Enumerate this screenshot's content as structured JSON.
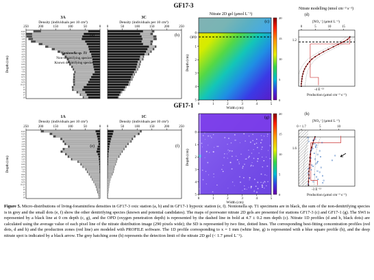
{
  "figure": {
    "title_top": "GF17-3",
    "title_bottom": "GF17-1",
    "colors": {
      "nonionella": "#1a1a1a",
      "non_denitrifying": "#b5b5b5",
      "known_denitrifying": "#4d4d4d",
      "swi_line": "#000000",
      "opd_line": "#000000",
      "profile_dots": "#000000",
      "profile_dots_blue": "#1f5fb4",
      "fit_line": "#8b0000",
      "production_line": "#cc3333"
    },
    "panels": {
      "a": {
        "label": "(a)",
        "station_title": "3A",
        "axis_title": "Density (individuals per 10 cm³)",
        "ticks": [
          "250",
          "200",
          "150",
          "100",
          "50",
          "0"
        ],
        "ylabel": "Depth (cm)"
      },
      "b": {
        "label": "(b)",
        "station_title": "3C",
        "axis_title": "Density (individuals per 10 cm³)",
        "ticks": [
          "0",
          "50",
          "100",
          "150",
          "200",
          "250"
        ]
      },
      "c": {
        "label": "(c)",
        "title": "Nitrate 2D gel (μmol L⁻¹)",
        "xlabel": "Width (cm)",
        "ylabel": "Depth (cm)",
        "x_ticks": [
          "0",
          "1",
          "2",
          "3",
          "4",
          "5"
        ],
        "y_ticks": [
          "0",
          "1",
          "2",
          "3",
          "4",
          "5"
        ],
        "opd_label": "OPD",
        "colorbar_ticks": [
          "20",
          "15",
          "10",
          "5",
          "0"
        ]
      },
      "d": {
        "label": "(d)",
        "title": "Nitrate modelling (nmol cm⁻³ s⁻¹)",
        "top_axis_title": "[NO₃⁻] (μmol L⁻¹)",
        "top_ticks": [
          "0",
          "5",
          "10",
          "15"
        ],
        "bottom_axis_title": "Production (μmol cm⁻³ s⁻¹)",
        "bottom_tick": "-4 E⁻¹³",
        "depth_tick": "1.2"
      },
      "e": {
        "label": "(e)",
        "station_title": "1A",
        "axis_title": "Density (individuals per 10 cm³)",
        "ticks": [
          "250",
          "200",
          "150",
          "100",
          "50",
          "0"
        ],
        "ylabel": "Depth (cm)"
      },
      "f": {
        "label": "(f)",
        "station_title": "1C",
        "axis_title": "Density (individuals per 10 cm³)",
        "ticks": [
          "0",
          "50",
          "100",
          "150",
          "200",
          "250"
        ]
      },
      "g": {
        "label": "(g)",
        "xlabel": "Width (cm)",
        "ylabel": "Depth (cm)",
        "x_ticks": [
          "0",
          "1",
          "2",
          "3",
          "4",
          "5"
        ],
        "y_ticks": [
          "0",
          "1",
          "2",
          "3",
          "4",
          "5"
        ],
        "colorbar_ticks": [
          "20",
          "15",
          "10",
          "5",
          "0"
        ]
      },
      "h": {
        "label": "(h)",
        "top_axis_title": "[NO₃⁻] (μmol L⁻¹)",
        "top_ticks": [
          "0 < 1.7",
          "5",
          "10"
        ],
        "bottom_axis_title": "Production (μmol cm⁻³ s⁻¹)",
        "bottom_tick": "-3 E⁻¹³",
        "depth_tick": "1.6"
      }
    },
    "legend": {
      "nonionella": "Nonionella sp. T1",
      "non_denitrifying": "Non-denitrifying species",
      "known_denitrifying": "Known denitrifying species"
    }
  },
  "chart_data": [
    {
      "type": "bar",
      "panel": "a",
      "orientation": "horizontal",
      "xlabel": "Density (individuals per 10 cm³)",
      "ylabel": "Depth (cm)",
      "xlim": [
        0,
        250
      ],
      "depth_labels": [
        "-0.25",
        "0.25",
        "0.75",
        "1.25",
        "1.75",
        "2.25",
        "2.75",
        "3.25",
        "3.75",
        "4.25",
        "4.75",
        "5.25",
        "5.75",
        "6.25",
        "6.75",
        "7.25",
        "7.75",
        "8.25",
        "8.75",
        "9.25",
        "9.75",
        "10.25",
        "11",
        "13",
        "15",
        "17",
        "19"
      ],
      "series": [
        {
          "name": "Nonionella sp. T1",
          "values": [
            40,
            55,
            60,
            62,
            50,
            45,
            40,
            38,
            35,
            30,
            28,
            26,
            25,
            24,
            22,
            20,
            18,
            25,
            30,
            35,
            40,
            45,
            55,
            60,
            50,
            45,
            40
          ]
        },
        {
          "name": "Non-denitrifying species",
          "values": [
            160,
            175,
            170,
            165,
            168,
            150,
            135,
            115,
            100,
            90,
            85,
            80,
            78,
            75,
            70,
            68,
            65,
            60,
            55,
            50,
            45,
            40,
            35,
            30,
            25,
            20,
            15
          ]
        },
        {
          "name": "Known denitrifying species",
          "values": [
            25,
            20,
            18,
            15,
            15,
            12,
            10,
            10,
            8,
            8,
            6,
            6,
            5,
            5,
            5,
            4,
            4,
            5,
            5,
            6,
            6,
            5,
            5,
            4,
            4,
            3,
            3
          ]
        }
      ]
    },
    {
      "type": "bar",
      "panel": "b",
      "orientation": "horizontal",
      "xlabel": "Density (individuals per 10 cm³)",
      "xlim": [
        0,
        250
      ],
      "depth_labels": [
        "-0.25",
        "0.25",
        "0.75",
        "1.25",
        "1.75",
        "2.25",
        "2.75",
        "3.25",
        "3.75",
        "4.25",
        "4.75",
        "5.25",
        "5.75",
        "6.25",
        "6.75",
        "7.25",
        "7.75",
        "8.25",
        "8.75",
        "9.25",
        "9.75",
        "10.25",
        "11",
        "13",
        "15",
        "17",
        "19"
      ],
      "series": [
        {
          "name": "Nonionella sp. T1",
          "values": [
            120,
            110,
            115,
            118,
            115,
            120,
            140,
            135,
            130,
            125,
            110,
            108,
            102,
            100,
            98,
            95,
            90,
            85,
            80,
            78,
            72,
            70,
            60,
            55,
            45,
            40,
            35
          ]
        },
        {
          "name": "Non-denitrifying species",
          "values": [
            30,
            35,
            40,
            38,
            30,
            25,
            20,
            18,
            15,
            12,
            10,
            10,
            8,
            8,
            8,
            6,
            6,
            5,
            5,
            4,
            4,
            4,
            3,
            3,
            3,
            2,
            2
          ]
        },
        {
          "name": "Known denitrifying species",
          "values": [
            8,
            8,
            10,
            10,
            8,
            6,
            5,
            5,
            4,
            4,
            3,
            3,
            3,
            3,
            2,
            2,
            2,
            2,
            2,
            2,
            1,
            1,
            1,
            1,
            1,
            1,
            1
          ]
        }
      ]
    },
    {
      "type": "bar",
      "panel": "e",
      "orientation": "horizontal",
      "xlabel": "Density (individuals per 10 cm³)",
      "ylabel": "Depth (cm)",
      "xlim": [
        0,
        250
      ],
      "depth_labels": [
        "-0.25",
        "0.25",
        "0.75",
        "1.25",
        "1.75",
        "2.25",
        "2.75",
        "3.25",
        "3.75",
        "4.25",
        "4.75",
        "5.25",
        "5.75",
        "6.25",
        "6.75",
        "7.25",
        "7.75",
        "8.25",
        "8.75",
        "9.25",
        "9.75",
        "10.25",
        "11",
        "13",
        "15",
        "17",
        "19"
      ],
      "series": [
        {
          "name": "Nonionella sp. T1",
          "values": [
            15,
            12,
            10,
            8,
            6,
            5,
            8,
            10,
            12,
            8,
            5,
            4,
            3,
            3,
            2,
            2,
            2,
            1,
            1,
            1,
            1,
            1,
            1,
            0,
            0,
            0,
            0
          ]
        },
        {
          "name": "Non-denitrifying species",
          "values": [
            175,
            150,
            140,
            120,
            115,
            110,
            95,
            110,
            115,
            105,
            100,
            90,
            70,
            60,
            55,
            45,
            40,
            35,
            30,
            25,
            20,
            15,
            12,
            10,
            8,
            6,
            5
          ]
        },
        {
          "name": "Known denitrifying species",
          "values": [
            10,
            8,
            8,
            6,
            5,
            5,
            5,
            6,
            6,
            5,
            4,
            4,
            3,
            3,
            2,
            2,
            2,
            2,
            1,
            1,
            1,
            1,
            1,
            1,
            1,
            0,
            0
          ]
        }
      ]
    },
    {
      "type": "bar",
      "panel": "f",
      "orientation": "horizontal",
      "xlabel": "Density (individuals per 10 cm³)",
      "xlim": [
        0,
        250
      ],
      "depth_labels": [
        "-0.25",
        "0.25",
        "0.75",
        "1.25",
        "1.75",
        "2.25",
        "2.75",
        "3.25",
        "3.75",
        "4.25",
        "4.75",
        "5.25",
        "5.75",
        "6.25",
        "6.75",
        "7.25",
        "7.75",
        "8.25",
        "8.75",
        "9.25",
        "9.75",
        "10.25",
        "11",
        "13",
        "15",
        "17",
        "19"
      ],
      "series": [
        {
          "name": "Nonionella sp. T1",
          "values": [
            20,
            18,
            15,
            12,
            10,
            8,
            6,
            5,
            4,
            3,
            3,
            2,
            2,
            2,
            1,
            1,
            1,
            1,
            1,
            0,
            0,
            0,
            0,
            0,
            0,
            0,
            0
          ]
        },
        {
          "name": "Non-denitrifying species",
          "values": [
            90,
            85,
            75,
            70,
            68,
            60,
            55,
            50,
            45,
            40,
            35,
            30,
            28,
            25,
            22,
            20,
            18,
            15,
            12,
            10,
            8,
            6,
            5,
            4,
            3,
            2,
            2
          ]
        },
        {
          "name": "Known denitrifying species",
          "values": [
            5,
            5,
            4,
            4,
            3,
            3,
            3,
            2,
            2,
            2,
            2,
            1,
            1,
            1,
            1,
            1,
            1,
            1,
            0,
            0,
            0,
            0,
            0,
            0,
            0,
            0,
            0
          ]
        }
      ]
    },
    {
      "type": "line",
      "panel": "d",
      "xlabel": "[NO₃⁻] (μmol L⁻¹)",
      "xlim": [
        0,
        17
      ],
      "ylim_depth_cm": [
        0.2,
        -5.0
      ],
      "swi_depth_cm": 0,
      "opd_depth_cm": -0.5,
      "series": [
        {
          "name": "profile",
          "x": [
            15.5,
            14.8,
            13.5,
            12,
            10.5,
            9,
            7.5,
            6.2,
            5,
            4,
            3.3,
            2.7,
            2.2,
            1.8,
            1.5,
            1.3,
            1.1,
            1,
            0.9,
            0.8,
            0.8
          ],
          "depth": [
            0,
            -0.25,
            -0.5,
            -0.75,
            -1,
            -1.25,
            -1.5,
            -1.75,
            -2,
            -2.25,
            -2.5,
            -2.75,
            -3,
            -3.25,
            -3.5,
            -3.75,
            -4,
            -4.25,
            -4.5,
            -4.75,
            -5
          ]
        },
        {
          "name": "production",
          "x": [
            15.5,
            15.5,
            3.5,
            3.5,
            6,
            6
          ],
          "depth": [
            0.1,
            -0.7,
            -0.7,
            -4.1,
            -4.1,
            -4.9
          ]
        }
      ]
    },
    {
      "type": "line",
      "panel": "h",
      "xlabel": "[NO₃⁻] (μmol L⁻¹)",
      "xlim": [
        0,
        12
      ],
      "ylim_depth_cm": [
        0.2,
        -5.0
      ],
      "swi_depth_cm": 0,
      "series": [
        {
          "name": "profile",
          "x": [
            3.5,
            3.2,
            3,
            2.8,
            2.6,
            2.5,
            2.4,
            2.4,
            2.3,
            2.3,
            2.2,
            2.2,
            2.2,
            2.1,
            2.1
          ],
          "depth": [
            0,
            -0.35,
            -0.7,
            -1.05,
            -1.4,
            -1.75,
            -2.1,
            -2.45,
            -2.8,
            -3.15,
            -3.5,
            -3.85,
            -4.2,
            -4.55,
            -4.9
          ]
        },
        {
          "name": "production",
          "x": [
            9,
            9,
            2.6,
            2.6,
            4,
            4
          ],
          "depth": [
            0.1,
            -0.6,
            -0.6,
            -4.4,
            -4.4,
            -4.9
          ]
        }
      ]
    }
  ],
  "caption": {
    "label": "Figure 5.",
    "text": " Micro-distributions of living-foraminifera densities in GF17-3 oxic station (a, b) and in GF17-1 hypoxic station (e, f). Nonionella sp. T1 specimens are in black, the sum of the non-denitrifying species is in grey and the small dots (e, f) show the other denitrifying species (known and potential candidates). The maps of porewater nitrate 2D gels are presented for stations GF17-3 (c) and GF17-1 (g). The SWI is represented by a black line at 0 cm depth (c, g), and the OPD (oxygen penetration depth) is represented by the dashed line in bold at 4.7 ± 0.2 mm depth (c). Nitrate 1D profiles (d and h, black dots) are calculated using the average value of each pixel line of the nitrate distribution image (290 pixels wide); the SD is represented by two fine, dotted lines. The corresponding best-fitting concentration profiles (red dots, d and h) and the production zones (red line) are modeled with PROFILE software. The 1D profile corresponding to x = 1 mm (white line, g) is represented with a blue square profile (h), and the deep nitrate spot is indicated by a black arrow. The grey hatching zone (h) represents the detection limit of the nitrate 2D gel (< 1.7 μmol L⁻¹)."
  }
}
